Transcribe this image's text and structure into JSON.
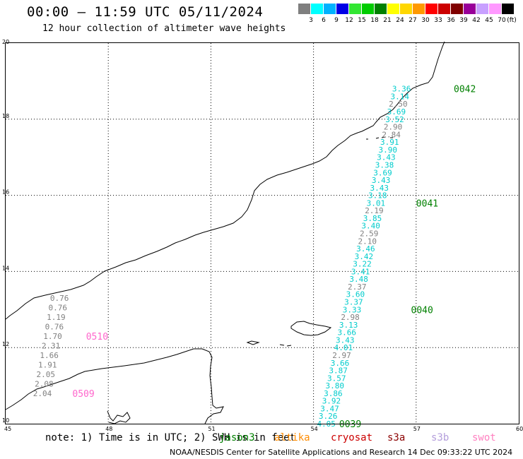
{
  "title": "00:00 – 11:59 UTC 05/11/2024",
  "subtitle": "12 hour collection of altimeter wave heights",
  "legend": {
    "unit": "(ft)",
    "items": [
      {
        "label": "3",
        "color": "#7f7f7f"
      },
      {
        "label": "6",
        "color": "#00ffff"
      },
      {
        "label": "9",
        "color": "#00b2ff"
      },
      {
        "label": "12",
        "color": "#0000e6"
      },
      {
        "label": "15",
        "color": "#33e633"
      },
      {
        "label": "18",
        "color": "#00cc00"
      },
      {
        "label": "21",
        "color": "#008000"
      },
      {
        "label": "24",
        "color": "#ffff00"
      },
      {
        "label": "27",
        "color": "#ffd700"
      },
      {
        "label": "30",
        "color": "#ff9900"
      },
      {
        "label": "33",
        "color": "#ff0000"
      },
      {
        "label": "36",
        "color": "#cc0000"
      },
      {
        "label": "39",
        "color": "#800000"
      },
      {
        "label": "42",
        "color": "#990099"
      },
      {
        "label": "45",
        "color": "#c8a0ff"
      },
      {
        "label": "70",
        "color": "#ff99ff"
      },
      {
        "label": "",
        "color": "#000000"
      }
    ]
  },
  "axes": {
    "x_ticks": [
      "45",
      "48",
      "51",
      "54",
      "57",
      "60"
    ],
    "y_ticks": [
      "10",
      "12",
      "14",
      "16",
      "18",
      "20"
    ]
  },
  "tracks": [
    {
      "color": "#00cccc",
      "points": [
        {
          "lon": 54.1,
          "lat": 10.0,
          "v": "4.05",
          "c": "#00cccc"
        },
        {
          "lon": 54.15,
          "lat": 10.2,
          "v": "3.26",
          "c": "#00cccc"
        },
        {
          "lon": 54.2,
          "lat": 10.4,
          "v": "3.47",
          "c": "#00cccc"
        },
        {
          "lon": 54.25,
          "lat": 10.6,
          "v": "3.92",
          "c": "#00cccc"
        },
        {
          "lon": 54.3,
          "lat": 10.8,
          "v": "3.86",
          "c": "#00cccc"
        },
        {
          "lon": 54.35,
          "lat": 11.0,
          "v": "3.80",
          "c": "#00cccc"
        },
        {
          "lon": 54.4,
          "lat": 11.2,
          "v": "3.57",
          "c": "#00cccc"
        },
        {
          "lon": 54.45,
          "lat": 11.4,
          "v": "3.87",
          "c": "#00cccc"
        },
        {
          "lon": 54.5,
          "lat": 11.6,
          "v": "3.66",
          "c": "#00cccc"
        },
        {
          "lon": 54.55,
          "lat": 11.8,
          "v": "2.97",
          "c": "#808080"
        },
        {
          "lon": 54.6,
          "lat": 12.0,
          "v": "4.01",
          "c": "#00cccc"
        },
        {
          "lon": 54.65,
          "lat": 12.2,
          "v": "3.43",
          "c": "#00cccc"
        },
        {
          "lon": 54.7,
          "lat": 12.4,
          "v": "3.66",
          "c": "#00cccc"
        },
        {
          "lon": 54.75,
          "lat": 12.6,
          "v": "3.13",
          "c": "#00cccc"
        },
        {
          "lon": 54.8,
          "lat": 12.8,
          "v": "2.98",
          "c": "#808080"
        },
        {
          "lon": 54.85,
          "lat": 13.0,
          "v": "3.33",
          "c": "#00cccc"
        },
        {
          "lon": 54.9,
          "lat": 13.2,
          "v": "3.37",
          "c": "#00cccc"
        },
        {
          "lon": 54.95,
          "lat": 13.4,
          "v": "3.60",
          "c": "#00cccc"
        },
        {
          "lon": 55.0,
          "lat": 13.6,
          "v": "2.37",
          "c": "#808080"
        },
        {
          "lon": 55.05,
          "lat": 13.8,
          "v": "3.48",
          "c": "#00cccc"
        },
        {
          "lon": 55.1,
          "lat": 14.0,
          "v": "3.41",
          "c": "#00cccc"
        },
        {
          "lon": 55.15,
          "lat": 14.2,
          "v": "3.22",
          "c": "#00cccc"
        },
        {
          "lon": 55.2,
          "lat": 14.4,
          "v": "3.42",
          "c": "#00cccc"
        },
        {
          "lon": 55.25,
          "lat": 14.6,
          "v": "3.46",
          "c": "#00cccc"
        },
        {
          "lon": 55.3,
          "lat": 14.8,
          "v": "2.10",
          "c": "#808080"
        },
        {
          "lon": 55.35,
          "lat": 15.0,
          "v": "2.59",
          "c": "#808080"
        },
        {
          "lon": 55.4,
          "lat": 15.2,
          "v": "3.40",
          "c": "#00cccc"
        },
        {
          "lon": 55.45,
          "lat": 15.4,
          "v": "3.85",
          "c": "#00cccc"
        },
        {
          "lon": 55.5,
          "lat": 15.6,
          "v": "2.19",
          "c": "#808080"
        },
        {
          "lon": 55.55,
          "lat": 15.8,
          "v": "3.01",
          "c": "#00cccc"
        },
        {
          "lon": 55.6,
          "lat": 16.0,
          "v": "3.18",
          "c": "#00cccc"
        },
        {
          "lon": 55.65,
          "lat": 16.2,
          "v": "3.43",
          "c": "#00cccc"
        },
        {
          "lon": 55.7,
          "lat": 16.4,
          "v": "3.43",
          "c": "#00cccc"
        },
        {
          "lon": 55.75,
          "lat": 16.6,
          "v": "3.69",
          "c": "#00cccc"
        },
        {
          "lon": 55.8,
          "lat": 16.8,
          "v": "3.38",
          "c": "#00cccc"
        },
        {
          "lon": 55.85,
          "lat": 17.0,
          "v": "3.43",
          "c": "#00cccc"
        },
        {
          "lon": 55.9,
          "lat": 17.2,
          "v": "3.90",
          "c": "#00cccc"
        },
        {
          "lon": 55.95,
          "lat": 17.4,
          "v": "3.91",
          "c": "#00cccc"
        },
        {
          "lon": 56.0,
          "lat": 17.6,
          "v": "2.84",
          "c": "#808080"
        },
        {
          "lon": 56.05,
          "lat": 17.8,
          "v": "2.90",
          "c": "#808080"
        },
        {
          "lon": 56.1,
          "lat": 18.0,
          "v": "3.52",
          "c": "#00cccc"
        },
        {
          "lon": 56.15,
          "lat": 18.2,
          "v": "3.69",
          "c": "#00cccc"
        },
        {
          "lon": 56.2,
          "lat": 18.4,
          "v": "2.50",
          "c": "#808080"
        },
        {
          "lon": 56.25,
          "lat": 18.6,
          "v": "3.14",
          "c": "#00cccc"
        },
        {
          "lon": 56.3,
          "lat": 18.8,
          "v": "3.36",
          "c": "#00cccc"
        }
      ]
    },
    {
      "color": "#808080",
      "points": [
        {
          "lon": 45.8,
          "lat": 10.8,
          "v": "2.04",
          "c": "#808080"
        },
        {
          "lon": 45.85,
          "lat": 11.05,
          "v": "2.08",
          "c": "#808080"
        },
        {
          "lon": 45.9,
          "lat": 11.3,
          "v": "2.05",
          "c": "#808080"
        },
        {
          "lon": 45.95,
          "lat": 11.55,
          "v": "1.91",
          "c": "#808080"
        },
        {
          "lon": 46.0,
          "lat": 11.8,
          "v": "1.66",
          "c": "#808080"
        },
        {
          "lon": 46.05,
          "lat": 12.05,
          "v": "2.31",
          "c": "#808080"
        },
        {
          "lon": 46.1,
          "lat": 12.3,
          "v": "1.70",
          "c": "#808080"
        },
        {
          "lon": 46.15,
          "lat": 12.55,
          "v": "0.76",
          "c": "#808080"
        },
        {
          "lon": 46.2,
          "lat": 12.8,
          "v": "1.19",
          "c": "#808080"
        },
        {
          "lon": 46.25,
          "lat": 13.05,
          "v": "0.76",
          "c": "#808080"
        },
        {
          "lon": 46.3,
          "lat": 13.3,
          "v": "0.76",
          "c": "#808080"
        }
      ]
    }
  ],
  "pass_labels": [
    {
      "text": "0039",
      "lon": 54.75,
      "lat": 10.0,
      "color": "#008000"
    },
    {
      "text": "0040",
      "lon": 56.85,
      "lat": 13.0,
      "color": "#008000"
    },
    {
      "text": "0041",
      "lon": 57.0,
      "lat": 15.8,
      "color": "#008000"
    },
    {
      "text": "0042",
      "lon": 58.1,
      "lat": 18.8,
      "color": "#008000"
    },
    {
      "text": "0510",
      "lon": 47.35,
      "lat": 12.3,
      "color": "#ff66cc"
    },
    {
      "text": "0509",
      "lon": 46.95,
      "lat": 10.8,
      "color": "#ff66cc"
    }
  ],
  "note": "note: 1) Time is in UTC; 2) SWH is in feet",
  "satellites": [
    {
      "name": "jason3",
      "color": "#008000"
    },
    {
      "name": "altika",
      "color": "#ff8c00"
    },
    {
      "name": "cryosat",
      "color": "#cc0000"
    },
    {
      "name": "s3a",
      "color": "#8b0000"
    },
    {
      "name": "s3b",
      "color": "#b39ddb"
    },
    {
      "name": "swot",
      "color": "#ff80c0"
    }
  ],
  "credit": "NOAA/NESDIS Center for Satellite Applications and Research    14 Dec 09:33:22 UTC 2024"
}
